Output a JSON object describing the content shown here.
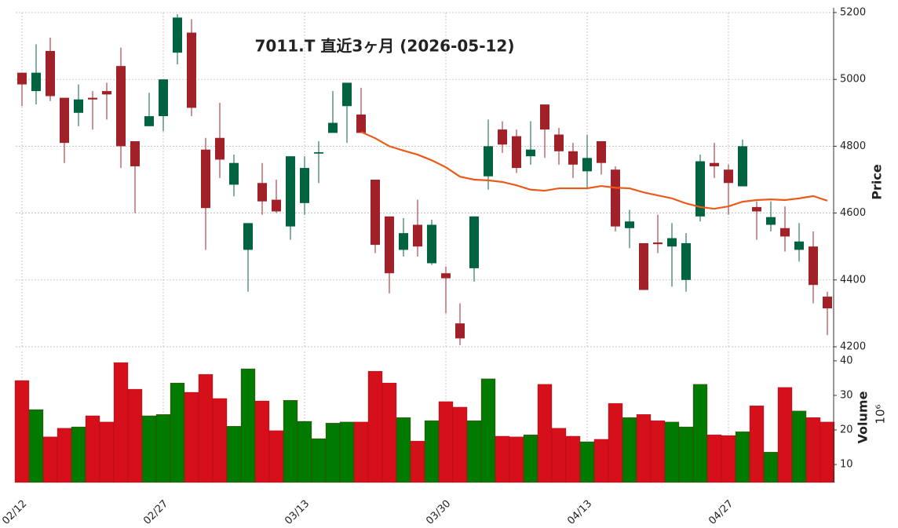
{
  "chart_data": {
    "type": "candlestick",
    "title": "7011.T  直近3ヶ月  (2026-05-12)",
    "ylabel": "Price",
    "categories": [
      "02/12",
      null,
      null,
      null,
      null,
      null,
      null,
      null,
      null,
      null,
      "02/27",
      null,
      null,
      null,
      null,
      null,
      null,
      null,
      null,
      null,
      "03/13",
      null,
      null,
      null,
      null,
      null,
      null,
      null,
      null,
      null,
      "03/30",
      null,
      null,
      null,
      null,
      null,
      null,
      null,
      null,
      null,
      "04/13",
      null,
      null,
      null,
      null,
      null,
      null,
      null,
      null,
      null,
      "04/27",
      null,
      null,
      null,
      null,
      null,
      null,
      null
    ],
    "open": [
      5020,
      4965,
      5085,
      4945,
      4900,
      4945,
      4965,
      5040,
      4815,
      4860,
      4890,
      5080,
      5140,
      4790,
      4825,
      4685,
      4490,
      4690,
      4640,
      4560,
      4630,
      4778,
      4840,
      4920,
      4895,
      4700,
      4590,
      4490,
      4565,
      4450,
      4420,
      4270,
      4435,
      4710,
      4850,
      4830,
      4770,
      4925,
      4835,
      4785,
      4725,
      4815,
      4730,
      4555,
      4510,
      4512,
      4500,
      4400,
      4590,
      4750,
      4730,
      4680,
      4618,
      4565,
      4555,
      4490,
      4500,
      4350
    ],
    "high": [
      5020,
      5105,
      5125,
      4945,
      4985,
      4965,
      4990,
      5095,
      4815,
      4960,
      5000,
      5195,
      5180,
      4825,
      4930,
      4775,
      4570,
      4750,
      4700,
      4770,
      4770,
      4815,
      4965,
      4990,
      4975,
      4700,
      4590,
      4585,
      4640,
      4580,
      4440,
      4330,
      4590,
      4880,
      4875,
      4850,
      4875,
      4925,
      4855,
      4810,
      4835,
      4815,
      4740,
      4610,
      4510,
      4595,
      4570,
      4540,
      4775,
      4810,
      4745,
      4820,
      4635,
      4635,
      4620,
      4570,
      4545,
      4365
    ],
    "low": [
      4920,
      4925,
      4935,
      4750,
      4860,
      4850,
      4880,
      4735,
      4600,
      4860,
      4845,
      5045,
      4890,
      4490,
      4705,
      4650,
      4365,
      4595,
      4600,
      4520,
      4595,
      4690,
      4840,
      4810,
      4840,
      4480,
      4360,
      4470,
      4470,
      4445,
      4300,
      4205,
      4395,
      4670,
      4780,
      4720,
      4745,
      4765,
      4745,
      4705,
      4675,
      4715,
      4545,
      4495,
      4370,
      4480,
      4380,
      4365,
      4575,
      4705,
      4595,
      4680,
      4520,
      4545,
      4485,
      4455,
      4330,
      4235
    ],
    "close": [
      4985,
      5020,
      4950,
      4810,
      4940,
      4940,
      4955,
      4800,
      4740,
      4890,
      5000,
      5185,
      4915,
      4615,
      4760,
      4750,
      4570,
      4635,
      4605,
      4770,
      4735,
      4782,
      4870,
      4990,
      4840,
      4505,
      4420,
      4540,
      4500,
      4565,
      4405,
      4225,
      4590,
      4800,
      4805,
      4735,
      4790,
      4850,
      4785,
      4745,
      4765,
      4750,
      4560,
      4575,
      4370,
      4507,
      4525,
      4510,
      4755,
      4740,
      4690,
      4800,
      4605,
      4588,
      4530,
      4515,
      4385,
      4315
    ],
    "up_color": "#006340",
    "down_color": "#a02128",
    "ylim": [
      4200,
      5200
    ],
    "yticks": [
      4200,
      4400,
      4600,
      4800,
      5000,
      5200
    ],
    "grid": true,
    "moving_average": {
      "color": "#ec5a1a",
      "values": [
        null,
        null,
        null,
        null,
        null,
        null,
        null,
        null,
        null,
        null,
        null,
        null,
        null,
        null,
        null,
        null,
        null,
        null,
        null,
        null,
        null,
        null,
        null,
        null,
        4843,
        4824,
        4800,
        4787,
        4775,
        4758,
        4737,
        4709,
        4700,
        4698,
        4693,
        4683,
        4670,
        4667,
        4674,
        4674,
        4674,
        4681,
        4676,
        4674,
        4662,
        4653,
        4644,
        4629,
        4618,
        4613,
        4620,
        4634,
        4639,
        4641,
        4639,
        4644,
        4651,
        4637
      ]
    },
    "volume": {
      "ylabel": "Volume",
      "multiplier": "10⁶",
      "up_color": "#007a00",
      "down_color": "#d5101b",
      "ylim": [
        4.8,
        42.7
      ],
      "yticks": [
        10,
        20,
        30,
        40
      ],
      "values": [
        34.3,
        25.9,
        18.0,
        20.5,
        20.9,
        24.1,
        22.3,
        39.5,
        31.8,
        24.1,
        24.5,
        33.6,
        30.9,
        36.1,
        29.1,
        21.1,
        37.7,
        28.4,
        19.8,
        28.6,
        22.5,
        17.5,
        22.0,
        22.3,
        22.3,
        37.0,
        33.6,
        23.6,
        16.8,
        22.7,
        28.2,
        26.6,
        22.7,
        34.8,
        18.2,
        18.0,
        18.6,
        33.2,
        20.5,
        18.2,
        16.6,
        17.3,
        27.7,
        23.6,
        24.5,
        22.7,
        22.3,
        20.9,
        33.2,
        18.6,
        18.4,
        19.5,
        27.0,
        13.6,
        32.3,
        25.5,
        23.6,
        22.3
      ]
    }
  }
}
